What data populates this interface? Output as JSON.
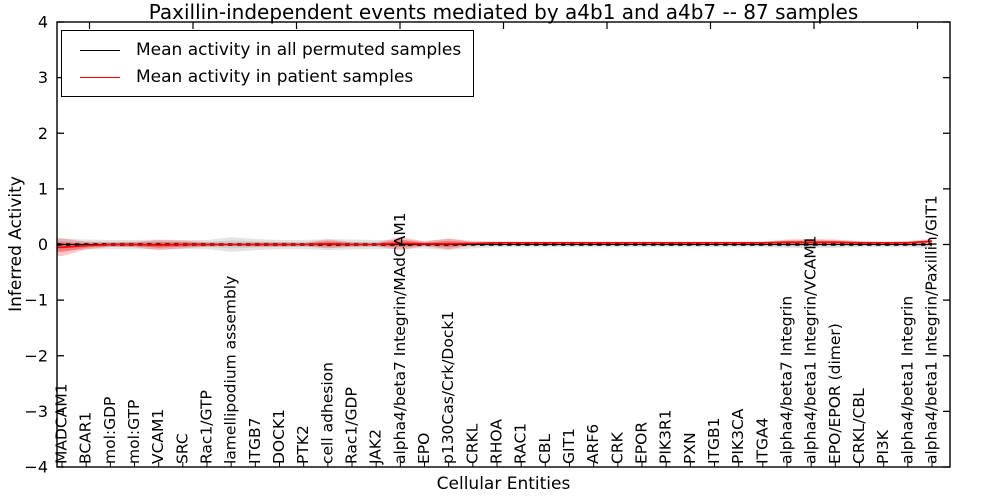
{
  "chart_data": {
    "type": "line",
    "title": "Paxillin-independent events mediated by a4b1 and a4b7 -- 87 samples",
    "xlabel": "Cellular Entities",
    "ylabel": "Inferred Activity",
    "ylim": [
      -4,
      4
    ],
    "ytick_values": [
      4,
      3,
      2,
      1,
      0,
      -1,
      -2,
      -3,
      -4
    ],
    "ytick_labels": [
      "4",
      "3",
      "2",
      "1",
      "0",
      "−1",
      "−2",
      "−3",
      "−4"
    ],
    "grid": false,
    "legend_position": "upper left",
    "categories": [
      "MADCAM1",
      "BCAR1",
      "mol:GDP",
      "mol:GTP",
      "VCAM1",
      "SRC",
      "Rac1/GTP",
      "lamellipodium assembly",
      "ITGB7",
      "DOCK1",
      "PTK2",
      "cell adhesion",
      "Rac1/GDP",
      "JAK2",
      "alpha4/beta7 Integrin/MAdCAM1",
      "EPO",
      "p130Cas/Crk/Dock1",
      "CRKL",
      "RHOA",
      "RAC1",
      "CBL",
      "GIT1",
      "ARF6",
      "CRK",
      "EPOR",
      "PIK3R1",
      "PXN",
      "ITGB1",
      "PIK3CA",
      "ITGA4",
      "alpha4/beta7 Integrin",
      "alpha4/beta1 Integrin/VCAM1",
      "EPO/EPOR (dimer)",
      "CRKL/CBL",
      "PI3K",
      "alpha4/beta1 Integrin",
      "alpha4/beta1 Integrin/Paxillin/GIT1"
    ],
    "series": [
      {
        "name": "Mean activity in all permuted samples",
        "color": "#000000",
        "line_style": "dashed",
        "band_color": "#999999",
        "mean": [
          0,
          0,
          0,
          0,
          0,
          0,
          0,
          0,
          0,
          0,
          0,
          0,
          0,
          0,
          0,
          0,
          0,
          0,
          0,
          0,
          0,
          0,
          0,
          0,
          0,
          0,
          0,
          0,
          0,
          0,
          0,
          0,
          0,
          0,
          0,
          0,
          0
        ],
        "band_halfwidth": [
          0.11,
          0.09,
          0.08,
          0.08,
          0.09,
          0.08,
          0.08,
          0.13,
          0.1,
          0.08,
          0.08,
          0.1,
          0.09,
          0.08,
          0.08,
          0.07,
          0.1,
          0.07,
          0.05,
          0.05,
          0.05,
          0.05,
          0.05,
          0.05,
          0.05,
          0.05,
          0.05,
          0.05,
          0.05,
          0.05,
          0.06,
          0.06,
          0.06,
          0.05,
          0.05,
          0.05,
          0.07
        ]
      },
      {
        "name": "Mean activity in patient samples",
        "color": "#ff0000",
        "line_style": "solid",
        "band_color": "#ff0000",
        "mean": [
          -0.05,
          -0.02,
          0,
          0,
          -0.01,
          0,
          0,
          0,
          0,
          0,
          0,
          0.01,
          0,
          0,
          0.02,
          0.01,
          0.01,
          0.02,
          0.03,
          0.03,
          0.03,
          0.03,
          0.03,
          0.03,
          0.03,
          0.03,
          0.03,
          0.03,
          0.03,
          0.03,
          0.04,
          0.04,
          0.04,
          0.03,
          0.03,
          0.03,
          0.06
        ],
        "band_halfwidth": [
          0.16,
          0.07,
          0.04,
          0.05,
          0.09,
          0.07,
          0.04,
          0.03,
          0.04,
          0.04,
          0.03,
          0.08,
          0.04,
          0.03,
          0.12,
          0.04,
          0.1,
          0.03,
          0.02,
          0.02,
          0.02,
          0.02,
          0.02,
          0.02,
          0.02,
          0.02,
          0.02,
          0.02,
          0.02,
          0.02,
          0.05,
          0.06,
          0.05,
          0.03,
          0.02,
          0.03,
          0.04
        ]
      }
    ]
  }
}
